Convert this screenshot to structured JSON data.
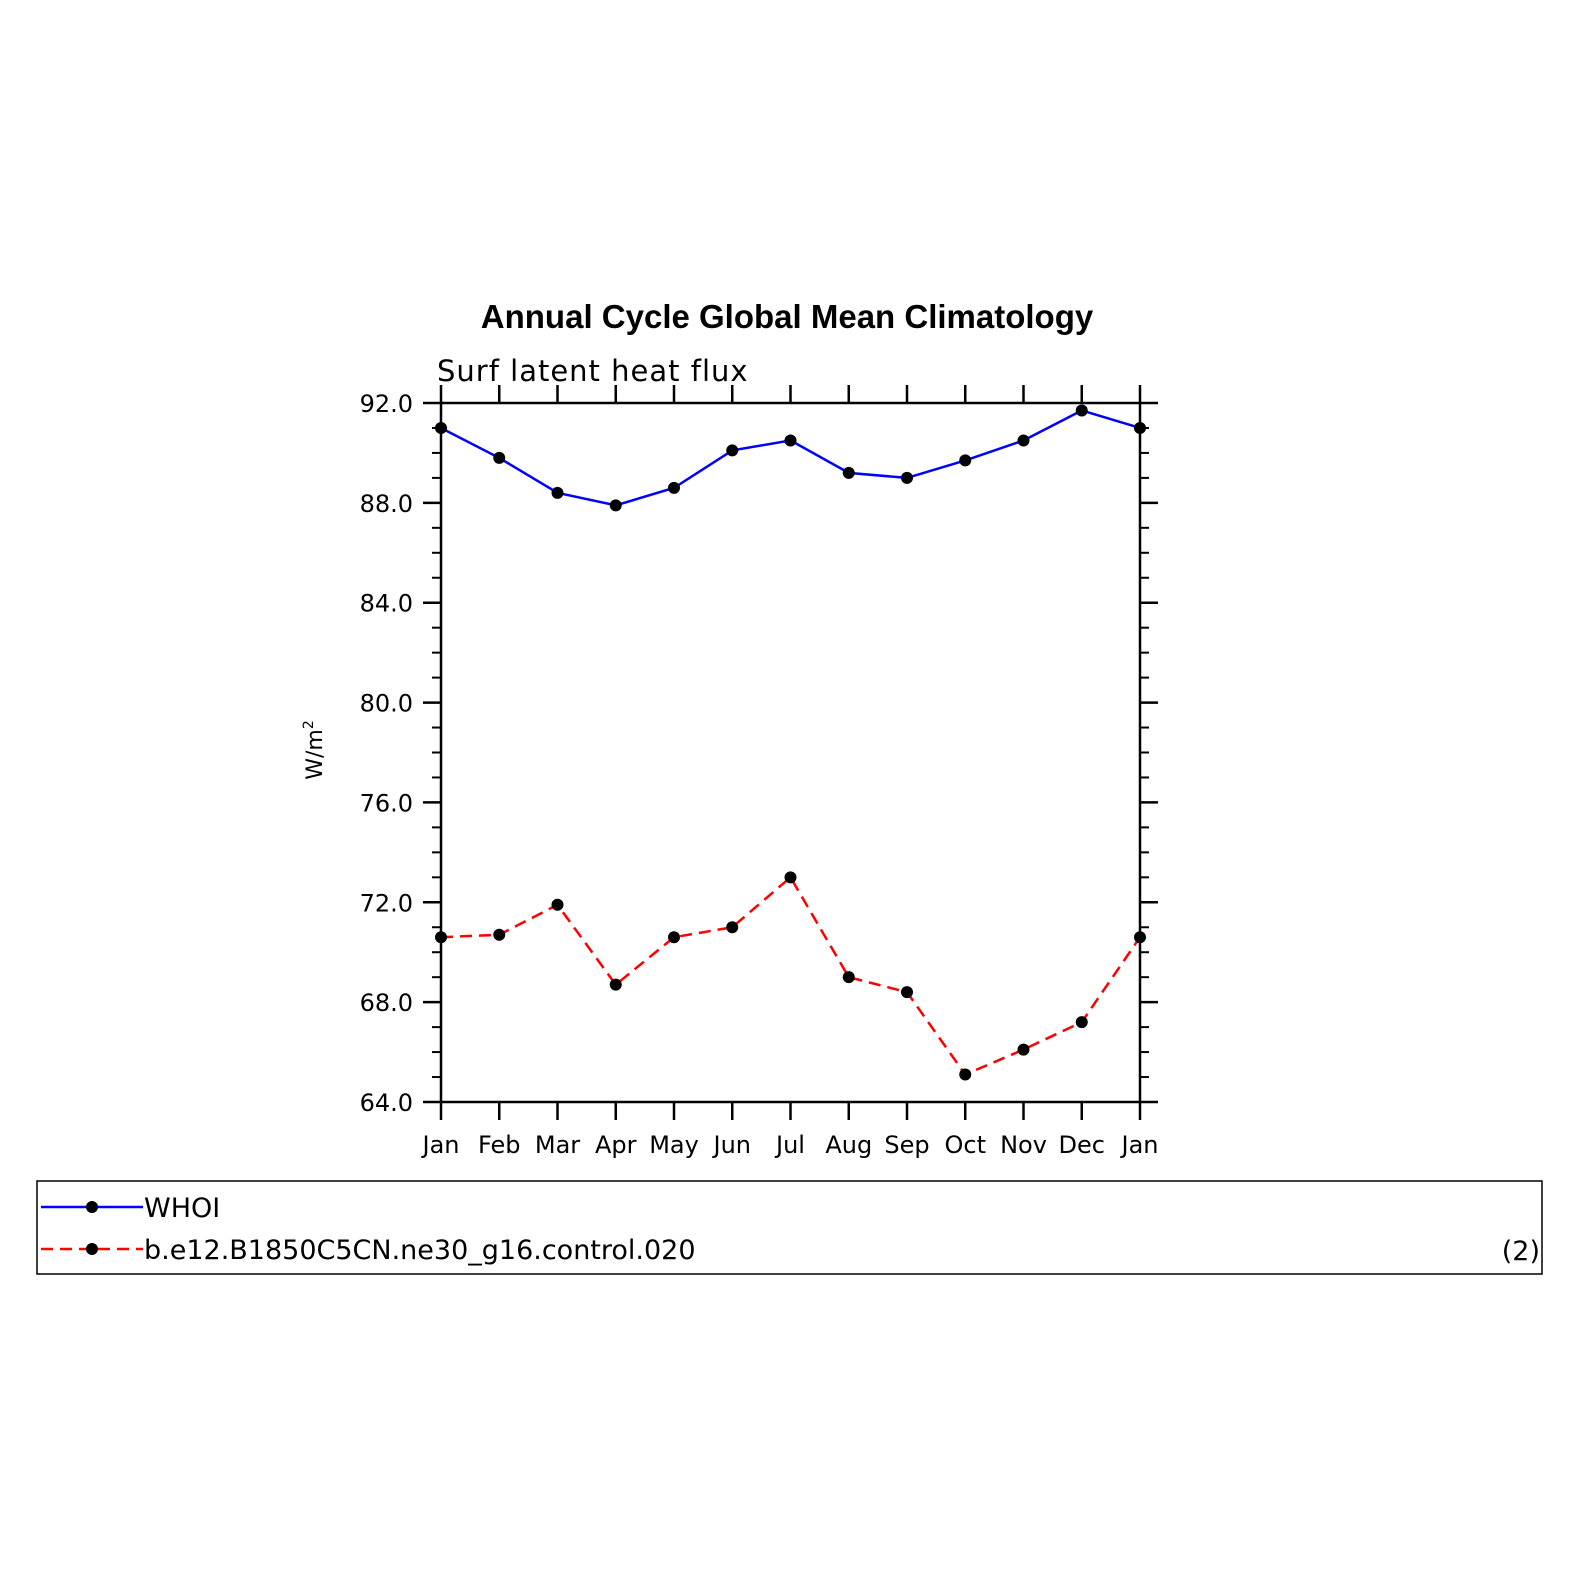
{
  "chart_data": {
    "type": "line",
    "title": "Annual Cycle Global Mean Climatology",
    "subtitle": "Surf latent heat flux",
    "ylabel": "W/m",
    "ylabel_superscript": "2",
    "xlabel": "",
    "categories": [
      "Jan",
      "Feb",
      "Mar",
      "Apr",
      "May",
      "Jun",
      "Jul",
      "Aug",
      "Sep",
      "Oct",
      "Nov",
      "Dec",
      "Jan"
    ],
    "ylim": [
      64,
      92
    ],
    "yticks": [
      "92.0",
      "88.0",
      "84.0",
      "80.0",
      "76.0",
      "72.0",
      "68.0",
      "64.0"
    ],
    "grid": false,
    "legend_placement": "bottom",
    "panel_label": "(2)",
    "series": [
      {
        "name": "WHOI",
        "color": "#0000ff",
        "line_style": "solid",
        "marker": "dot",
        "values": [
          91.0,
          89.8,
          88.4,
          87.9,
          88.6,
          90.1,
          90.5,
          89.2,
          89.0,
          89.7,
          90.5,
          91.7,
          91.0
        ]
      },
      {
        "name": "b.e12.B1850C5CN.ne30_g16.control.020",
        "color": "#ff0000",
        "line_style": "dashed",
        "marker": "dot",
        "values": [
          70.6,
          70.7,
          71.9,
          68.7,
          70.6,
          71.0,
          73.0,
          69.0,
          68.4,
          65.1,
          66.1,
          67.2,
          70.6
        ]
      }
    ]
  }
}
